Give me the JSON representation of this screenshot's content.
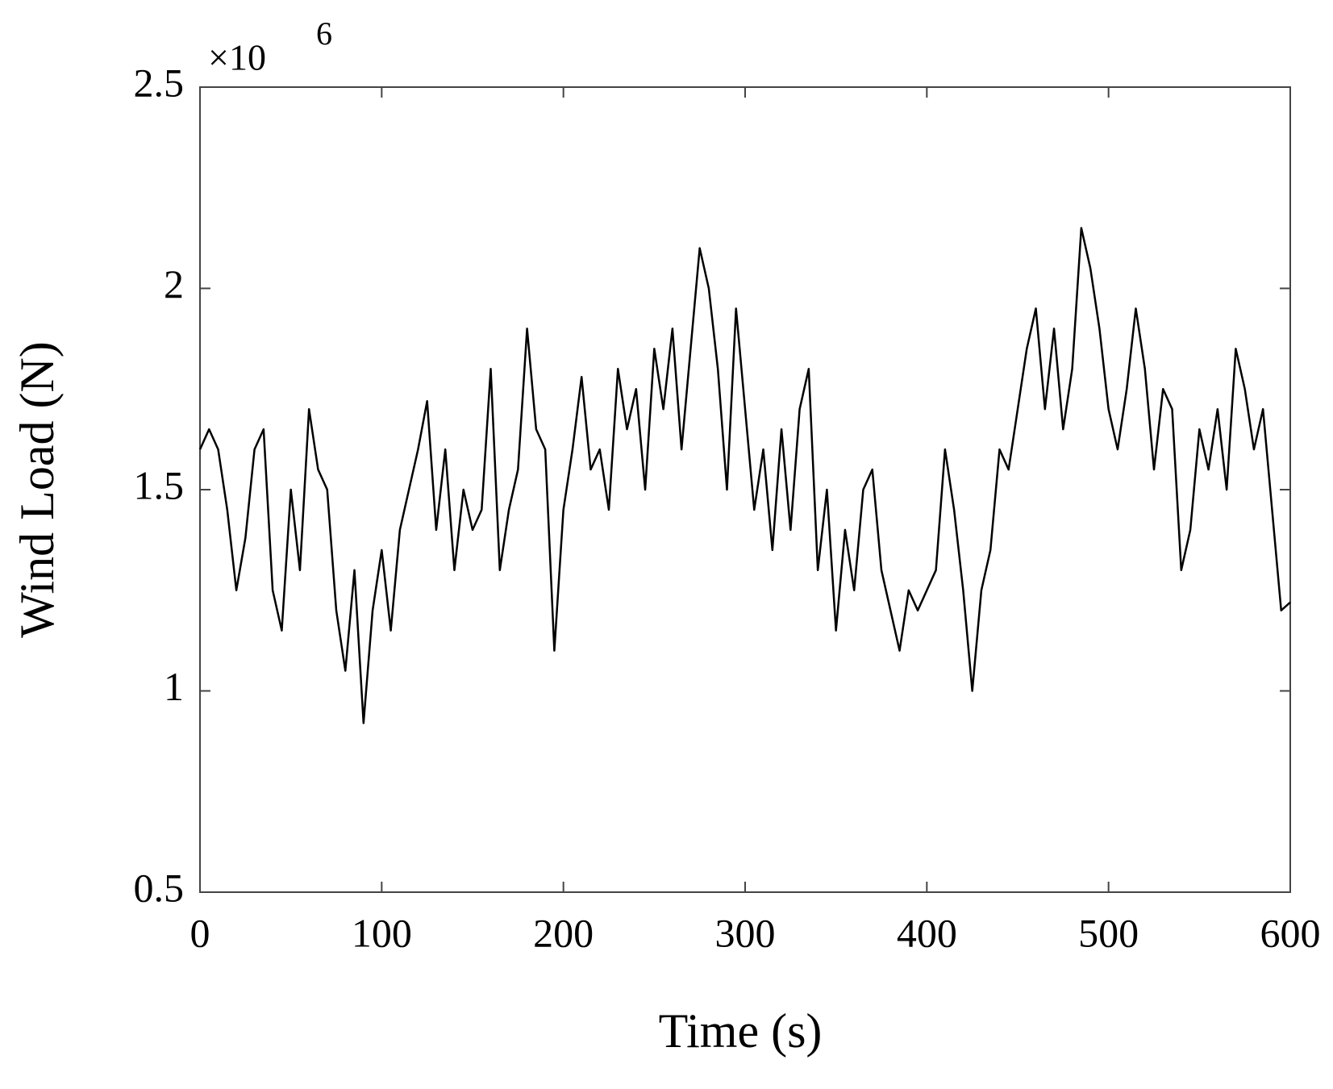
{
  "chart_data": {
    "type": "line",
    "xlabel": "Time (s)",
    "ylabel": "Wind Load (N)",
    "y_multiplier": {
      "base": "×10",
      "exponent": "6"
    },
    "x": [
      0,
      5,
      10,
      15,
      20,
      25,
      30,
      35,
      40,
      45,
      50,
      55,
      60,
      65,
      70,
      75,
      80,
      85,
      90,
      95,
      100,
      105,
      110,
      115,
      120,
      125,
      130,
      135,
      140,
      145,
      150,
      155,
      160,
      165,
      170,
      175,
      180,
      185,
      190,
      195,
      200,
      205,
      210,
      215,
      220,
      225,
      230,
      235,
      240,
      245,
      250,
      255,
      260,
      265,
      270,
      275,
      280,
      285,
      290,
      295,
      300,
      305,
      310,
      315,
      320,
      325,
      330,
      335,
      340,
      345,
      350,
      355,
      360,
      365,
      370,
      375,
      380,
      385,
      390,
      395,
      400,
      405,
      410,
      415,
      420,
      425,
      430,
      435,
      440,
      445,
      450,
      455,
      460,
      465,
      470,
      475,
      480,
      485,
      490,
      495,
      500,
      505,
      510,
      515,
      520,
      525,
      530,
      535,
      540,
      545,
      550,
      555,
      560,
      565,
      570,
      575,
      580,
      585,
      590,
      595,
      600
    ],
    "series": [
      {
        "name": "Wind Load",
        "color": "#000000",
        "values": [
          1.6,
          1.65,
          1.6,
          1.45,
          1.25,
          1.38,
          1.6,
          1.65,
          1.25,
          1.15,
          1.5,
          1.3,
          1.7,
          1.55,
          1.5,
          1.2,
          1.05,
          1.3,
          0.92,
          1.2,
          1.35,
          1.15,
          1.4,
          1.5,
          1.6,
          1.72,
          1.4,
          1.6,
          1.3,
          1.5,
          1.4,
          1.45,
          1.8,
          1.3,
          1.45,
          1.55,
          1.9,
          1.65,
          1.6,
          1.1,
          1.45,
          1.6,
          1.78,
          1.55,
          1.6,
          1.45,
          1.8,
          1.65,
          1.75,
          1.5,
          1.85,
          1.7,
          1.9,
          1.6,
          1.85,
          2.1,
          2.0,
          1.8,
          1.5,
          1.95,
          1.7,
          1.45,
          1.6,
          1.35,
          1.65,
          1.4,
          1.7,
          1.8,
          1.3,
          1.5,
          1.15,
          1.4,
          1.25,
          1.5,
          1.55,
          1.3,
          1.2,
          1.1,
          1.25,
          1.2,
          1.25,
          1.3,
          1.6,
          1.45,
          1.25,
          1.0,
          1.25,
          1.35,
          1.6,
          1.55,
          1.7,
          1.85,
          1.95,
          1.7,
          1.9,
          1.65,
          1.8,
          2.15,
          2.05,
          1.9,
          1.7,
          1.6,
          1.75,
          1.95,
          1.8,
          1.55,
          1.75,
          1.7,
          1.3,
          1.4,
          1.65,
          1.55,
          1.7,
          1.5,
          1.85,
          1.75,
          1.6,
          1.7,
          1.45,
          1.2,
          1.22
        ]
      }
    ],
    "xlim": [
      0,
      600
    ],
    "xticks": [
      0,
      100,
      200,
      300,
      400,
      500,
      600
    ],
    "ylim": [
      0.5,
      2.5
    ],
    "yticks": [
      0.5,
      1,
      1.5,
      2,
      2.5
    ]
  }
}
